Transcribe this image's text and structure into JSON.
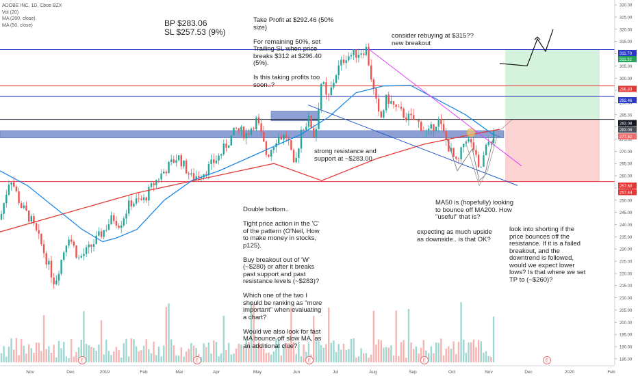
{
  "header": {
    "symbol_line": "ADOBE INC, 1D, Cboe BZX",
    "indicators": [
      "Vol (20)",
      "MA (200, close)",
      "MA (50, close)"
    ]
  },
  "chart_data": {
    "type": "candlestick",
    "y_axis": {
      "range": [
        183,
        332
      ],
      "ticks": [
        185,
        190,
        195,
        200,
        205,
        210,
        215,
        220,
        225,
        230,
        235,
        240,
        245,
        250,
        255,
        260,
        265,
        270,
        275,
        280,
        285,
        290,
        295,
        300,
        305,
        310,
        315,
        320,
        325,
        330
      ],
      "tick_labels": [
        "185.00",
        "190.00",
        "195.00",
        "200.00",
        "205.00",
        "210.00",
        "215.00",
        "220.00",
        "225.00",
        "230.00",
        "235.00",
        "240.00",
        "245.00",
        "250.00",
        "255.00",
        "260.00",
        "265.00",
        "270.00",
        "275.00",
        "280.00",
        "285.00",
        "290.00",
        "295.00",
        "300.00",
        "305.00",
        "310.00",
        "315.00",
        "320.00",
        "325.00",
        "330.00"
      ]
    },
    "x_axis": {
      "labels": [
        "Nov",
        "Dec",
        "2019",
        "Feb",
        "Mar",
        "Apr",
        "May",
        "Jun",
        "Jul",
        "Aug",
        "Sep",
        "Oct",
        "Nov",
        "Dec",
        "2020",
        "Feb"
      ]
    },
    "price_badges": [
      {
        "value": "311.70",
        "color": "#2a39c8"
      },
      {
        "value": "311.32",
        "color": "#23a35a"
      },
      {
        "value": "296.83",
        "color": "#e53935"
      },
      {
        "value": "292.46",
        "color": "#2a39c8"
      },
      {
        "value": "283.08",
        "color": "#131722"
      },
      {
        "value": "283.08",
        "color": "#4a4f5a"
      },
      {
        "value": "277.82",
        "color": "#ef6c6c"
      },
      {
        "value": "257.60",
        "color": "#e53935"
      },
      {
        "value": "257.44",
        "color": "#e53935"
      }
    ],
    "horizontal_lines": [
      {
        "price": 311.7,
        "color": "#2a39c8"
      },
      {
        "price": 296.83,
        "color": "#e53935"
      },
      {
        "price": 292.46,
        "color": "#2a39c8"
      },
      {
        "price": 283.08,
        "color": "#131722"
      },
      {
        "price": 257.6,
        "color": "#e53935"
      }
    ],
    "anchors": [
      {
        "x": 0,
        "p": 242
      },
      {
        "x": 15,
        "p": 260
      },
      {
        "x": 30,
        "p": 248
      },
      {
        "x": 45,
        "p": 242
      },
      {
        "x": 60,
        "p": 232
      },
      {
        "x": 80,
        "p": 216
      },
      {
        "x": 100,
        "p": 236
      },
      {
        "x": 115,
        "p": 226
      },
      {
        "x": 130,
        "p": 230
      },
      {
        "x": 150,
        "p": 237
      },
      {
        "x": 165,
        "p": 243
      },
      {
        "x": 175,
        "p": 240
      },
      {
        "x": 190,
        "p": 249
      },
      {
        "x": 210,
        "p": 250
      },
      {
        "x": 225,
        "p": 257
      },
      {
        "x": 240,
        "p": 262
      },
      {
        "x": 260,
        "p": 268
      },
      {
        "x": 280,
        "p": 259
      },
      {
        "x": 300,
        "p": 262
      },
      {
        "x": 320,
        "p": 268
      },
      {
        "x": 345,
        "p": 279
      },
      {
        "x": 360,
        "p": 277
      },
      {
        "x": 375,
        "p": 283
      },
      {
        "x": 390,
        "p": 268
      },
      {
        "x": 405,
        "p": 276
      },
      {
        "x": 420,
        "p": 276
      },
      {
        "x": 430,
        "p": 262
      },
      {
        "x": 440,
        "p": 279
      },
      {
        "x": 452,
        "p": 283
      },
      {
        "x": 460,
        "p": 275
      },
      {
        "x": 470,
        "p": 300
      },
      {
        "x": 478,
        "p": 290
      },
      {
        "x": 492,
        "p": 303
      },
      {
        "x": 505,
        "p": 309
      },
      {
        "x": 520,
        "p": 310
      },
      {
        "x": 535,
        "p": 312
      },
      {
        "x": 545,
        "p": 296
      },
      {
        "x": 555,
        "p": 282
      },
      {
        "x": 565,
        "p": 292
      },
      {
        "x": 580,
        "p": 287
      },
      {
        "x": 595,
        "p": 284
      },
      {
        "x": 610,
        "p": 282
      },
      {
        "x": 625,
        "p": 277
      },
      {
        "x": 640,
        "p": 283
      },
      {
        "x": 655,
        "p": 272
      },
      {
        "x": 668,
        "p": 264
      },
      {
        "x": 680,
        "p": 276
      },
      {
        "x": 692,
        "p": 271
      },
      {
        "x": 700,
        "p": 261
      },
      {
        "x": 712,
        "p": 273
      },
      {
        "x": 722,
        "p": 277
      }
    ],
    "ma200": [
      [
        0,
        237
      ],
      [
        100,
        245
      ],
      [
        200,
        253
      ],
      [
        300,
        259
      ],
      [
        400,
        265
      ],
      [
        470,
        258
      ],
      [
        550,
        267
      ],
      [
        620,
        273
      ],
      [
        700,
        277.5
      ],
      [
        730,
        279
      ]
    ],
    "ma50": [
      [
        0,
        262
      ],
      [
        40,
        256
      ],
      [
        80,
        247
      ],
      [
        120,
        238
      ],
      [
        150,
        233
      ],
      [
        170,
        234.5
      ],
      [
        200,
        238
      ],
      [
        240,
        250
      ],
      [
        280,
        258
      ],
      [
        320,
        262
      ],
      [
        360,
        267
      ],
      [
        400,
        272
      ],
      [
        440,
        277
      ],
      [
        480,
        284
      ],
      [
        520,
        294
      ],
      [
        560,
        296.8
      ],
      [
        600,
        297
      ],
      [
        640,
        291
      ],
      [
        680,
        285
      ],
      [
        720,
        277
      ],
      [
        730,
        276
      ]
    ],
    "trendlines": [
      {
        "from": [
          538,
          312
        ],
        "to": [
          762,
          264
        ],
        "color": "#e040fb"
      },
      {
        "from": [
          450,
          289
        ],
        "to": [
          756,
          256
        ],
        "color": "#1e55c8"
      }
    ],
    "projection_polyline": [
      [
        730,
        306
      ],
      [
        770,
        305
      ],
      [
        785,
        316
      ],
      [
        797,
        311
      ],
      [
        808,
        320
      ]
    ],
    "projection_arrow_tip": [
      785,
      316
    ],
    "v_shape": [
      [
        652,
        276
      ],
      [
        668,
        262
      ],
      [
        690,
        271
      ],
      [
        700,
        258
      ],
      [
        708,
        260
      ],
      [
        722,
        277
      ]
    ],
    "w_shape": [
      [
        680,
        274
      ],
      [
        700,
        256
      ],
      [
        712,
        262
      ],
      [
        728,
        278
      ],
      [
        748,
        283
      ]
    ],
    "zones": {
      "take_profit": {
        "x1": 738,
        "x2": 876,
        "p1": 311.7,
        "p2": 283.08,
        "color": "#d5f3dc"
      },
      "stop_loss": {
        "x1": 738,
        "x2": 876,
        "p1": 283.08,
        "p2": 257.6,
        "color": "#fbd3d3"
      }
    },
    "rectangles": [
      {
        "x1": 396,
        "x2": 466,
        "p1": 286.5,
        "p2": 282.5,
        "color": "#7a8fcb"
      },
      {
        "x1": 0,
        "x2": 736,
        "p1": 278.5,
        "p2": 275.5,
        "color": "#7a8fcb"
      }
    ],
    "circle": {
      "x": 688,
      "p": 277.6,
      "r": 6
    },
    "e_markers": [
      {
        "x": 120,
        "label": "E"
      },
      {
        "x": 288,
        "label": "E"
      },
      {
        "x": 452,
        "label": "E"
      },
      {
        "x": 620,
        "label": "E"
      },
      {
        "x": 799,
        "label": "E"
      }
    ]
  },
  "annotations": {
    "bp": "BP $283.06",
    "sl": "SL $257.53 (9%)",
    "take_profit": "Take Profit at $292.46 (50%\nsize)\n\nFor remaining 50%, set\nTrailing SL when price\nbreaks $312 at $296.40\n(5%).\n\nIs this taking profits too\nsoon..?",
    "rebuy": "consider rebuying at $315??\nnew breakout",
    "resistance": "strong resistance and\nsupport at ~$283.00",
    "double_bottom": "Double bottom..\n\nTight price action in the 'C'\nof the pattern (O'Neil, How\nto make money in stocks,\np125).\n\nBuy breakout out of 'W'\n(~$280) or after it breaks\npast support and past\nresistance levels (~$283)?\n\nWhich one of the two I\nshould be ranking as \"more\nimportant\" when evaluating\na chart?\n\nWould we also look for fast\nMA bounce off slow MA, as\nan additional clue?",
    "ma50_bounce": "MA50 is (hopefully) looking\nto bounce off MA200. How\n\"useful\" that is?",
    "upside": "expecting as much upside\nas downside.. is that OK?",
    "shorting": "look into shorting if the\nprice bounces off the\nresistance. If it is a failed\nbreakout, and the\ndowntrend is followed,\nwould we expect lower\nlows? Is that where we set\nTP to (~$260)?"
  }
}
